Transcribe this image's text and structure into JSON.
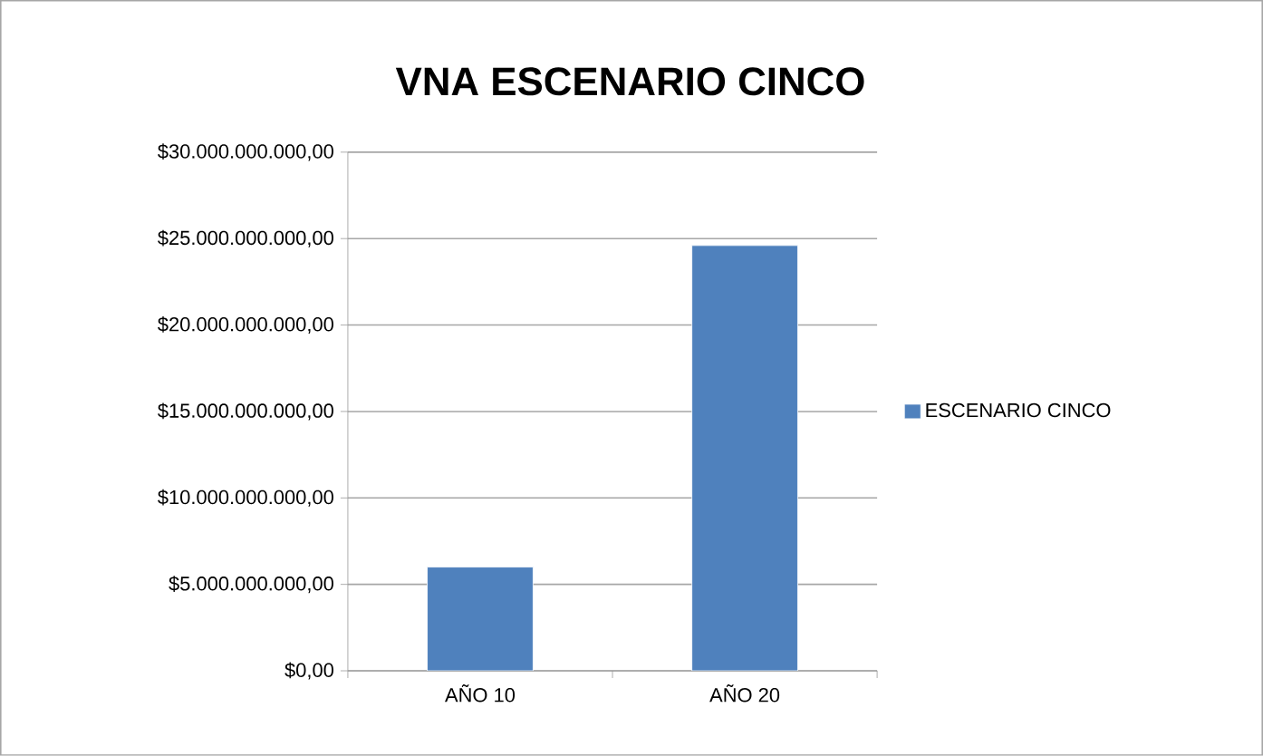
{
  "chart_data": {
    "type": "bar",
    "title": "VNA ESCENARIO CINCO",
    "categories": [
      "AÑO 10",
      "AÑO 20"
    ],
    "series": [
      {
        "name": "ESCENARIO CINCO",
        "color": "#4f81bd",
        "values": [
          6000000000,
          24600000000
        ]
      }
    ],
    "ylim": [
      0,
      30000000000
    ],
    "yticks": [
      {
        "value": 0,
        "label": "$0,00"
      },
      {
        "value": 5000000000,
        "label": "$5.000.000.000,00"
      },
      {
        "value": 10000000000,
        "label": "$10.000.000.000,00"
      },
      {
        "value": 15000000000,
        "label": "$15.000.000.000,00"
      },
      {
        "value": 20000000000,
        "label": "$20.000.000.000,00"
      },
      {
        "value": 25000000000,
        "label": "$25.000.000.000,00"
      },
      {
        "value": 30000000000,
        "label": "$30.000.000.000,00"
      }
    ],
    "grid": "y",
    "legend": "right"
  }
}
